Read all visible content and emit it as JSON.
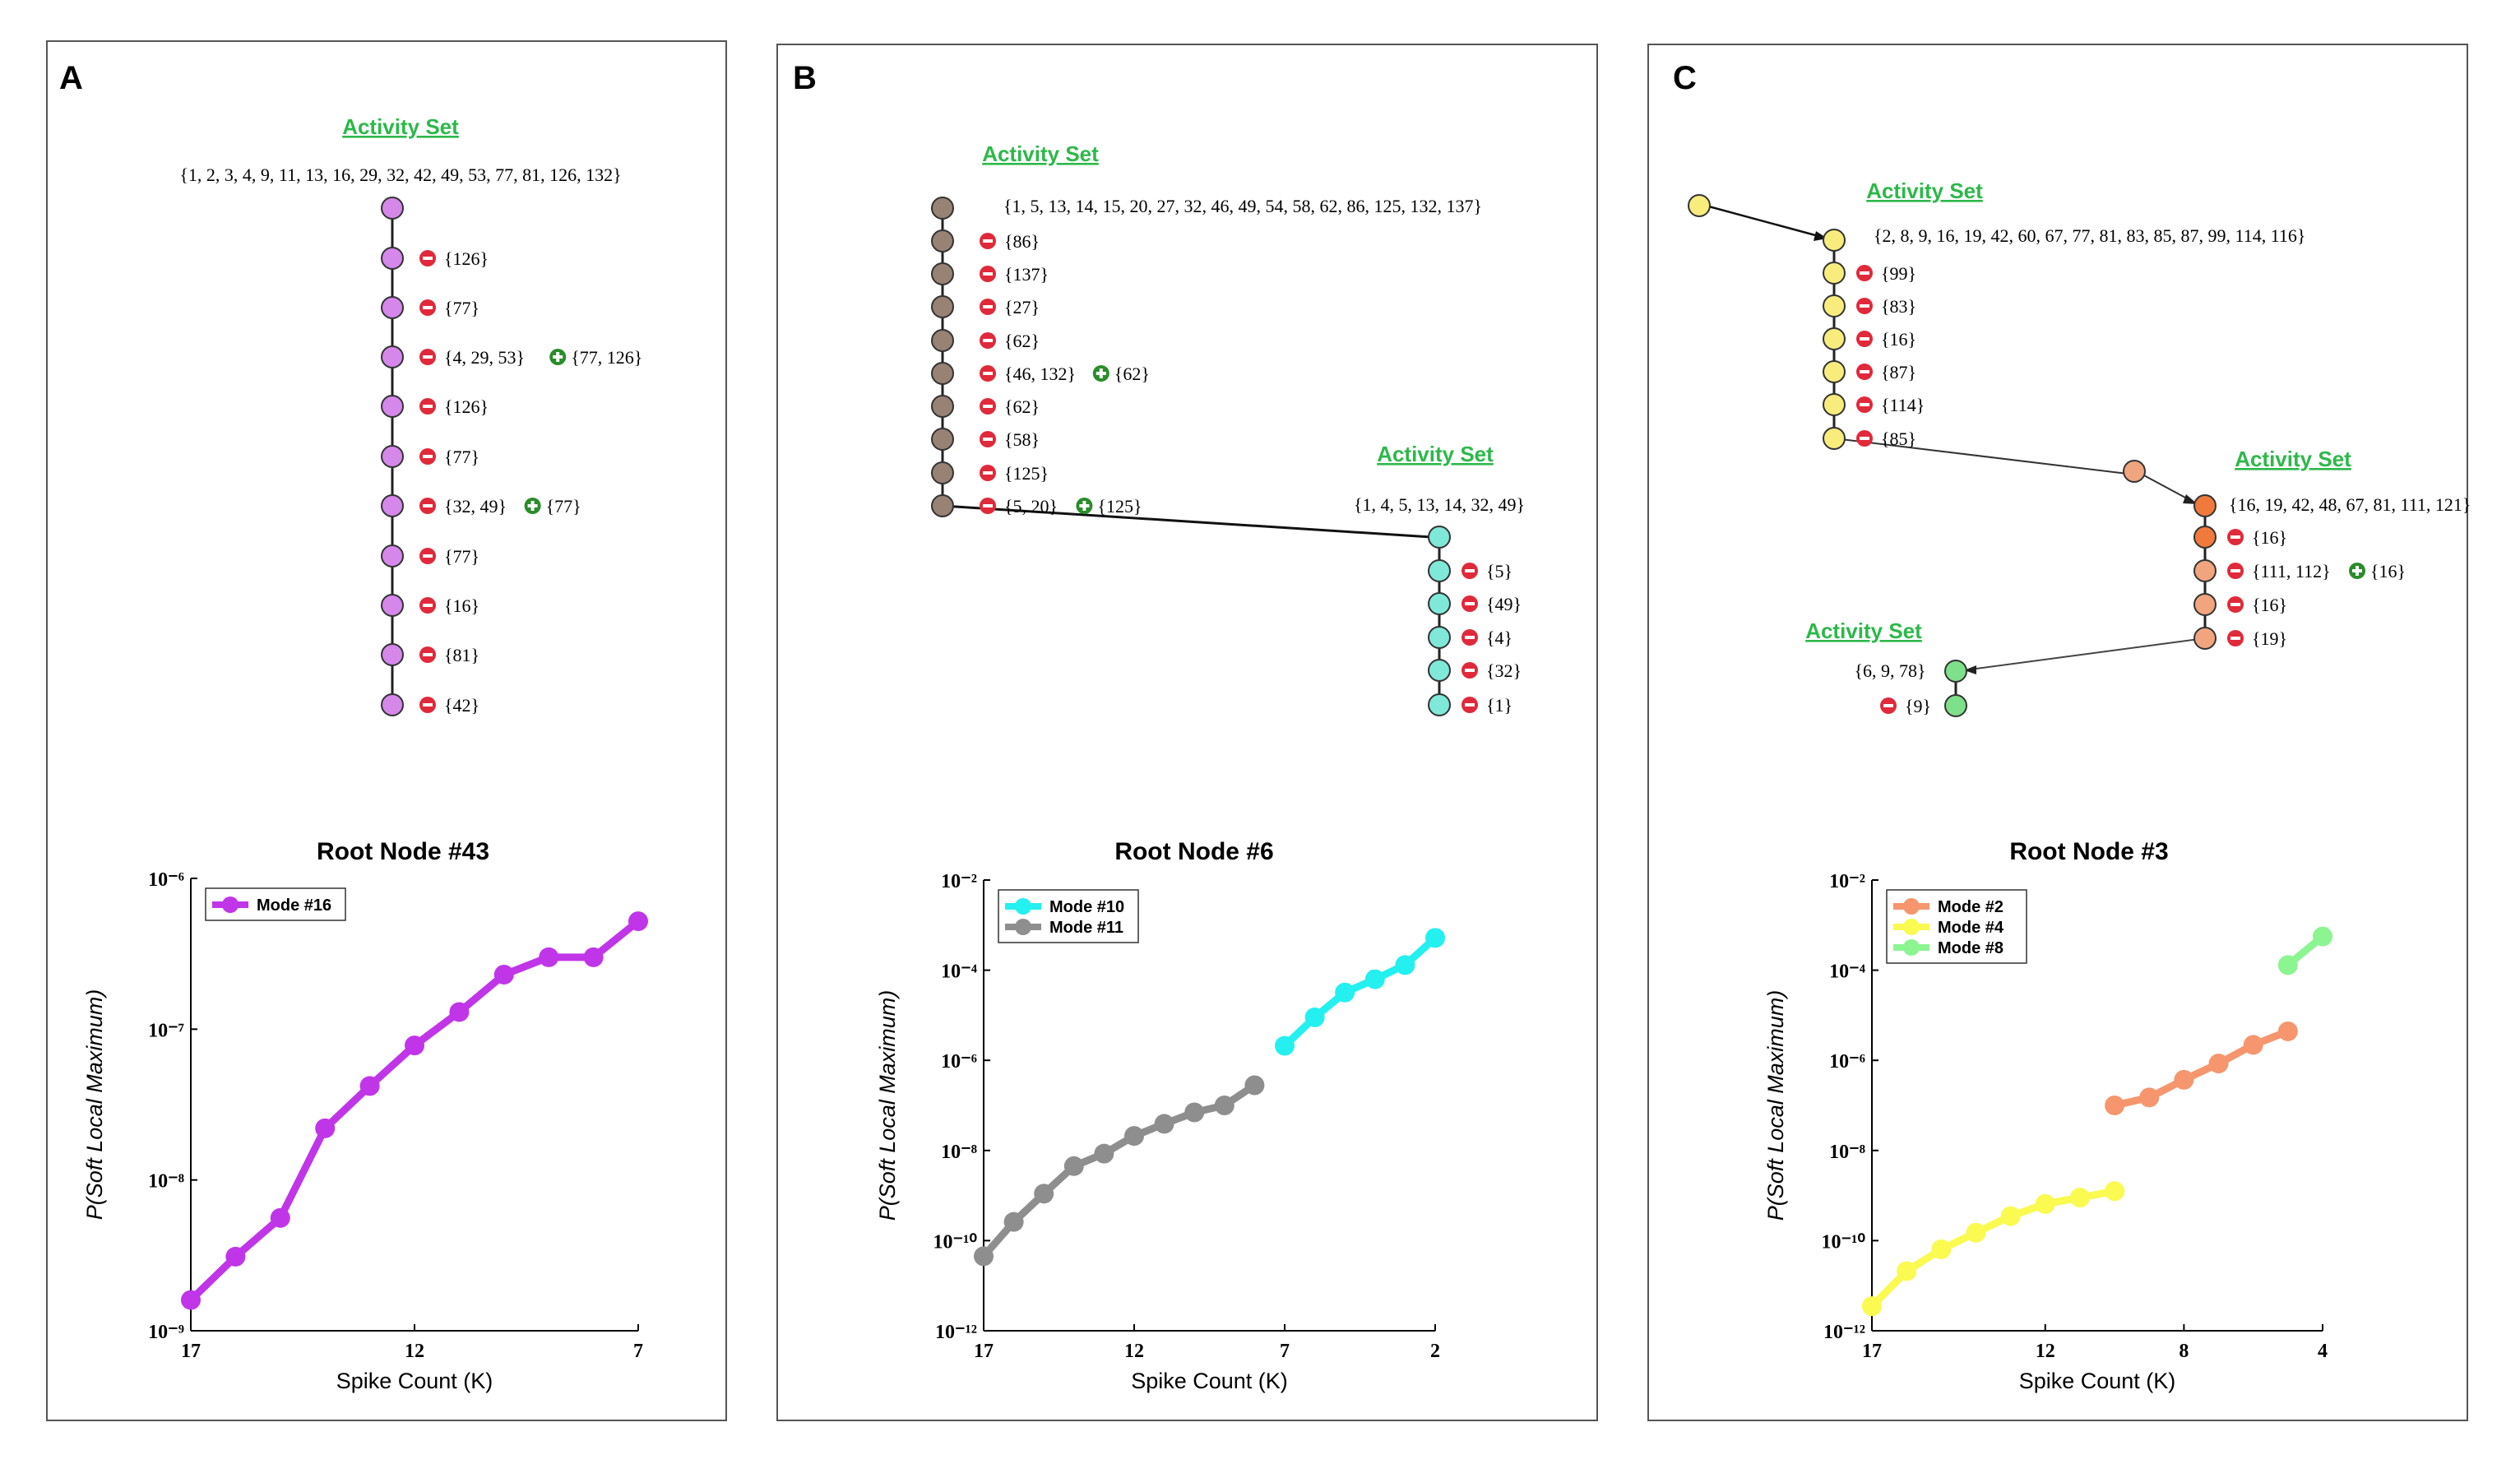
{
  "panels": [
    {
      "letter": "A",
      "tree": {
        "groups": [
          {
            "label": "Activity Set",
            "set": "{1, 2, 3, 4, 9, 11, 13, 16, 29, 32, 42, 49, 53, 77, 81, 126, 132}",
            "color": "#d587ea",
            "steps": [
              {
                "minus": "{126}",
                "plus": ""
              },
              {
                "minus": "{77}",
                "plus": ""
              },
              {
                "minus": "{4, 29, 53}",
                "plus": "{77, 126}"
              },
              {
                "minus": "{126}",
                "plus": ""
              },
              {
                "minus": "{77}",
                "plus": ""
              },
              {
                "minus": "{32, 49}",
                "plus": "{77}"
              },
              {
                "minus": "{77}",
                "plus": ""
              },
              {
                "minus": "{16}",
                "plus": ""
              },
              {
                "minus": "{81}",
                "plus": ""
              },
              {
                "minus": "{42}",
                "plus": ""
              }
            ]
          }
        ]
      },
      "chart_data": {
        "type": "line",
        "title": "Root Node #43",
        "xlabel": "Spike Count (K)",
        "ylabel": "P(Soft Local Maximum)",
        "yscale": "log",
        "ylim": [
          1e-09,
          1e-06
        ],
        "xlim": [
          17,
          7
        ],
        "xticks": [
          "17",
          "12",
          "7"
        ],
        "yticks": [
          "10⁻⁹",
          "10⁻⁸",
          "10⁻⁷",
          "10⁻⁶"
        ],
        "legend_position": "top-left",
        "series": [
          {
            "name": "Mode #16",
            "color": "#c035e8",
            "x": [
              17,
              16,
              15,
              14,
              13,
              12,
              11,
              10,
              9,
              8,
              7
            ],
            "y": [
              1.6e-09,
              3.1e-09,
              5.6e-09,
              2.2e-08,
              4.2e-08,
              7.8e-08,
              1.3e-07,
              2.3e-07,
              3e-07,
              3e-07,
              5.2e-07
            ]
          }
        ]
      }
    },
    {
      "letter": "B",
      "tree": {
        "groups": [
          {
            "label": "Activity Set",
            "set": "{1, 5, 13, 14, 15, 20, 27, 32, 46, 49, 54, 58, 62, 86, 125, 132, 137}",
            "color": "#978274",
            "steps": [
              {
                "minus": "{86}",
                "plus": ""
              },
              {
                "minus": "{137}",
                "plus": ""
              },
              {
                "minus": "{27}",
                "plus": ""
              },
              {
                "minus": "{62}",
                "plus": ""
              },
              {
                "minus": "{46, 132}",
                "plus": "{62}"
              },
              {
                "minus": "{62}",
                "plus": ""
              },
              {
                "minus": "{58}",
                "plus": ""
              },
              {
                "minus": "{125}",
                "plus": ""
              },
              {
                "minus": "{5, 20}",
                "plus": "{125}"
              }
            ]
          },
          {
            "label": "Activity Set",
            "set": "{1, 4, 5, 13, 14, 32, 49}",
            "color": "#7fe8d9",
            "steps": [
              {
                "minus": "{5}",
                "plus": ""
              },
              {
                "minus": "{49}",
                "plus": ""
              },
              {
                "minus": "{4}",
                "plus": ""
              },
              {
                "minus": "{32}",
                "plus": ""
              },
              {
                "minus": "{1}",
                "plus": ""
              }
            ]
          }
        ]
      },
      "chart_data": {
        "type": "line",
        "title": "Root Node #6",
        "xlabel": "Spike Count (K)",
        "ylabel": "P(Soft Local Maximum)",
        "yscale": "log",
        "ylim": [
          1e-12,
          0.01
        ],
        "xlim": [
          17,
          2
        ],
        "xticks": [
          "17",
          "12",
          "7",
          "2"
        ],
        "yticks": [
          "10⁻¹²",
          "10⁻¹⁰",
          "10⁻⁸",
          "10⁻⁶",
          "10⁻⁴",
          "10⁻²"
        ],
        "legend_position": "top-left",
        "series": [
          {
            "name": "Mode #10",
            "color": "#24f0f0",
            "x": [
              7,
              6,
              5,
              4,
              3,
              2
            ],
            "y": [
              2.1e-06,
              9e-06,
              3.2e-05,
              6.3e-05,
              0.00013,
              0.00052
            ]
          },
          {
            "name": "Mode #11",
            "color": "#8e8e8e",
            "x": [
              17,
              16,
              15,
              14,
              13,
              12,
              11,
              10,
              9,
              8
            ],
            "y": [
              4.5e-11,
              2.6e-10,
              1.1e-09,
              4.5e-09,
              8.5e-09,
              2.1e-08,
              3.9e-08,
              7e-08,
              1e-07,
              2.8e-07
            ]
          }
        ]
      }
    },
    {
      "letter": "C",
      "tree": {
        "groups": [
          {
            "label": "Activity Set",
            "set": "{2, 8, 9, 16, 19, 42, 60, 67, 77, 81, 83, 85, 87, 99, 114, 116}",
            "color": "#f8ec7c",
            "steps": [
              {
                "minus": "{99}",
                "plus": ""
              },
              {
                "minus": "{83}",
                "plus": ""
              },
              {
                "minus": "{16}",
                "plus": ""
              },
              {
                "minus": "{87}",
                "plus": ""
              },
              {
                "minus": "{114}",
                "plus": ""
              },
              {
                "minus": "{85}",
                "plus": ""
              }
            ]
          },
          {
            "label": "Activity Set",
            "set": "{16, 19, 42, 48, 67, 81, 111, 121}",
            "color": "#f0a57f",
            "steps": [
              {
                "minus": "{16}",
                "plus": ""
              },
              {
                "minus": "{111, 112}",
                "plus": "{16}"
              },
              {
                "minus": "{16}",
                "plus": ""
              },
              {
                "minus": "{19}",
                "plus": ""
              }
            ]
          },
          {
            "label": "Activity Set",
            "set": "{6, 9, 78}",
            "color": "#7ee08a",
            "steps": [
              {
                "minus": "{9}",
                "plus": ""
              }
            ]
          }
        ]
      },
      "chart_data": {
        "type": "line",
        "title": "Root  Node #3",
        "xlabel": "Spike Count (K)",
        "ylabel": "P(Soft Local Maximum)",
        "yscale": "log",
        "ylim": [
          1e-12,
          0.01
        ],
        "xlim": [
          17,
          4
        ],
        "xticks": [
          "17",
          "12",
          "8",
          "4"
        ],
        "yticks": [
          "10⁻¹²",
          "10⁻¹⁰",
          "10⁻⁸",
          "10⁻⁶",
          "10⁻⁴",
          "10⁻²"
        ],
        "legend_position": "top-left",
        "series": [
          {
            "name": "Mode #2",
            "color": "#f5966e",
            "x": [
              10,
              9,
              8,
              7,
              6,
              5
            ],
            "y": [
              1e-07,
              1.5e-07,
              3.7e-07,
              8.5e-07,
              2.2e-06,
              4.4e-06
            ]
          },
          {
            "name": "Mode #4",
            "color": "#fafa50",
            "x": [
              17,
              16,
              15,
              14,
              13,
              12,
              11,
              10
            ],
            "y": [
              3.5e-12,
              2.1e-11,
              6.4e-11,
              1.5e-10,
              3.5e-10,
              6.5e-10,
              9e-10,
              1.25e-09
            ]
          },
          {
            "name": "Mode #8",
            "color": "#8cf592",
            "x": [
              5,
              4
            ],
            "y": [
              0.00013,
              0.00056
            ]
          }
        ]
      }
    }
  ]
}
